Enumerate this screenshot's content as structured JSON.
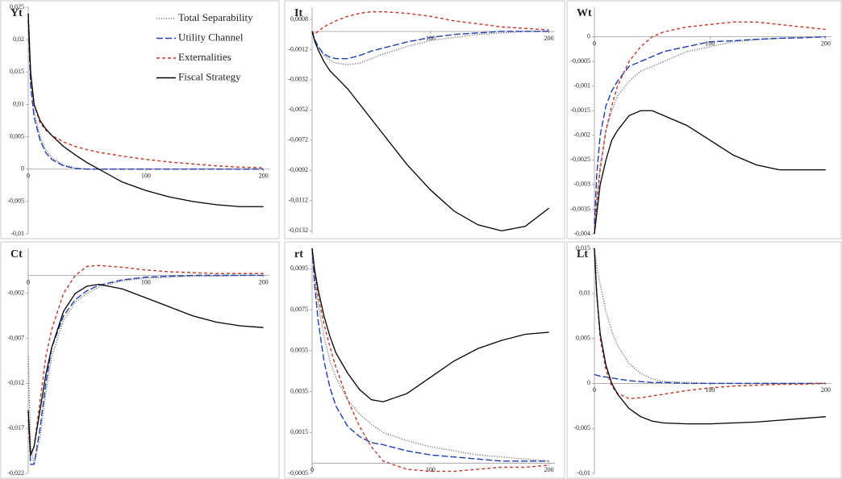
{
  "chart_data": [
    {
      "type": "line",
      "title": "Yt",
      "legend": "upper right",
      "x": [
        0,
        2,
        5,
        10,
        15,
        20,
        30,
        40,
        50,
        60,
        80,
        100,
        120,
        140,
        160,
        180,
        200
      ],
      "xlim": [
        0,
        205
      ],
      "xticks": [
        0,
        100,
        200
      ],
      "ylim": [
        -0.01,
        0.025
      ],
      "yticks": [
        {
          "value": 0.025,
          "label": "0,025"
        },
        {
          "value": 0.02,
          "label": "0,02"
        },
        {
          "value": 0.015,
          "label": "0,015"
        },
        {
          "value": 0.01,
          "label": "0,01"
        },
        {
          "value": 0.005,
          "label": "0,005"
        },
        0,
        {
          "value": -0.005,
          "label": "-0,005"
        },
        {
          "value": -0.01,
          "label": "-0,01"
        }
      ],
      "series": [
        {
          "name": "Total Separability",
          "color": "#777777",
          "style": "dotted",
          "values": [
            0.024,
            0.014,
            0.009,
            0.005,
            0.003,
            0.0018,
            0.0006,
            0.0002,
            0,
            0,
            0,
            0,
            0,
            0,
            0,
            0,
            0
          ]
        },
        {
          "name": "Utility Channel",
          "color": "#1f3fb0",
          "style": "dashed",
          "values": [
            0.023,
            0.013,
            0.008,
            0.0045,
            0.0025,
            0.0015,
            0.0005,
            0.0001,
            0,
            0,
            0,
            0,
            0,
            0,
            0,
            0,
            0
          ]
        },
        {
          "name": "Externalities",
          "color": "#c0392b",
          "style": "short-dashed",
          "values": [
            0.024,
            0.015,
            0.01,
            0.0072,
            0.006,
            0.0052,
            0.0042,
            0.0035,
            0.003,
            0.0026,
            0.002,
            0.0015,
            0.0011,
            0.0008,
            0.0005,
            0.0003,
            0.0002
          ]
        },
        {
          "name": "Fiscal Strategy",
          "color": "#000000",
          "style": "solid",
          "values": [
            0.024,
            0.015,
            0.01,
            0.0075,
            0.0062,
            0.0052,
            0.0035,
            0.0022,
            0.001,
            0,
            -0.002,
            -0.0033,
            -0.0043,
            -0.005,
            -0.0055,
            -0.0058,
            -0.0058
          ]
        }
      ]
    },
    {
      "type": "line",
      "title": "It",
      "x": [
        0,
        2,
        5,
        10,
        15,
        20,
        30,
        40,
        50,
        60,
        80,
        100,
        120,
        140,
        160,
        180,
        200
      ],
      "xlim": [
        0,
        205
      ],
      "xticks": [
        100,
        200
      ],
      "ylim": [
        -0.0134,
        0.0016
      ],
      "yticks": [
        {
          "value": 0.0008,
          "label": "0,0008"
        },
        {
          "value": -0.0012,
          "label": "-0,0012"
        },
        {
          "value": -0.0032,
          "label": "-0,0032"
        },
        {
          "value": -0.0052,
          "label": "-0,0052"
        },
        {
          "value": -0.0072,
          "label": "-0,0072"
        },
        {
          "value": -0.0092,
          "label": "-0,0092"
        },
        {
          "value": -0.0112,
          "label": "-0,0112"
        },
        {
          "value": -0.0132,
          "label": "-0,0132"
        }
      ],
      "series": [
        {
          "color": "#777777",
          "style": "dotted",
          "values": [
            0,
            -0.0005,
            -0.001,
            -0.0016,
            -0.0019,
            -0.0021,
            -0.0022,
            -0.0021,
            -0.0018,
            -0.0015,
            -0.001,
            -0.0006,
            -0.0004,
            -0.0002,
            -0.0001,
            0,
            0
          ]
        },
        {
          "color": "#1f3fb0",
          "style": "dashed",
          "values": [
            0,
            -0.0005,
            -0.001,
            -0.0015,
            -0.0017,
            -0.0018,
            -0.0018,
            -0.0016,
            -0.0013,
            -0.0011,
            -0.0007,
            -0.0004,
            -0.0002,
            -0.0001,
            0,
            0,
            0
          ]
        },
        {
          "color": "#c0392b",
          "style": "short-dashed",
          "values": [
            0,
            -0.0002,
            0,
            0.0003,
            0.0005,
            0.0007,
            0.001,
            0.0012,
            0.0013,
            0.0013,
            0.0012,
            0.001,
            0.0007,
            0.0005,
            0.0003,
            0.0002,
            0.0001
          ]
        },
        {
          "color": "#000000",
          "style": "solid",
          "values": [
            0,
            -0.0006,
            -0.0012,
            -0.002,
            -0.0026,
            -0.003,
            -0.0038,
            -0.0048,
            -0.0058,
            -0.0068,
            -0.0088,
            -0.0105,
            -0.0119,
            -0.0128,
            -0.0132,
            -0.0129,
            -0.0117
          ]
        }
      ]
    },
    {
      "type": "line",
      "title": "Wt",
      "x": [
        0,
        2,
        5,
        10,
        15,
        20,
        30,
        40,
        50,
        60,
        80,
        100,
        120,
        140,
        160,
        180,
        200
      ],
      "xlim": [
        0,
        205
      ],
      "xticks": [
        0,
        100,
        200
      ],
      "ylim": [
        -0.004,
        0.0006
      ],
      "yticks": [
        0,
        {
          "value": -0.0005,
          "label": "-0,0005"
        },
        {
          "value": -0.001,
          "label": "-0,001"
        },
        {
          "value": -0.0015,
          "label": "-0,0015"
        },
        {
          "value": -0.002,
          "label": "-0,002"
        },
        {
          "value": -0.0025,
          "label": "-0,0025"
        },
        {
          "value": -0.003,
          "label": "-0,003"
        },
        {
          "value": -0.0035,
          "label": "-0,0035"
        },
        {
          "value": -0.004,
          "label": "-0,004"
        }
      ],
      "series": [
        {
          "color": "#777777",
          "style": "dotted",
          "values": [
            -0.0039,
            -0.0033,
            -0.0026,
            -0.0019,
            -0.0015,
            -0.0012,
            -0.0009,
            -0.0007,
            -0.0006,
            -0.0005,
            -0.0003,
            -0.0002,
            -0.0001,
            -6e-05,
            -3e-05,
            -1e-05,
            0
          ]
        },
        {
          "color": "#1f3fb0",
          "style": "dashed",
          "values": [
            -0.0038,
            -0.0028,
            -0.002,
            -0.0014,
            -0.0011,
            -0.0009,
            -0.0006,
            -0.0005,
            -0.0004,
            -0.0003,
            -0.0002,
            -0.0001,
            -8e-05,
            -5e-05,
            -3e-05,
            -2e-05,
            0
          ]
        },
        {
          "color": "#c0392b",
          "style": "short-dashed",
          "values": [
            -0.004,
            -0.0034,
            -0.0027,
            -0.0019,
            -0.0014,
            -0.001,
            -0.0005,
            -0.0002,
            0,
            0.0001,
            0.0002,
            0.00025,
            0.0003,
            0.0003,
            0.00025,
            0.0002,
            0.00015
          ]
        },
        {
          "color": "#000000",
          "style": "solid",
          "values": [
            -0.004,
            -0.0036,
            -0.003,
            -0.0025,
            -0.0021,
            -0.0019,
            -0.0016,
            -0.0015,
            -0.0015,
            -0.0016,
            -0.0018,
            -0.0021,
            -0.0024,
            -0.0026,
            -0.0027,
            -0.0027,
            -0.0027
          ]
        }
      ]
    },
    {
      "type": "line",
      "title": "Ct",
      "x": [
        0,
        2,
        5,
        10,
        15,
        20,
        30,
        40,
        50,
        60,
        80,
        100,
        120,
        140,
        160,
        180,
        200
      ],
      "xlim": [
        0,
        205
      ],
      "xticks": [
        0,
        100,
        200
      ],
      "ylim": [
        -0.022,
        0.003
      ],
      "yticks": [
        {
          "value": -0.002,
          "label": "-0,002"
        },
        {
          "value": -0.007,
          "label": "-0,007"
        },
        {
          "value": -0.012,
          "label": "-0,012"
        },
        {
          "value": -0.017,
          "label": "-0,017"
        },
        {
          "value": -0.022,
          "label": "-0,022"
        }
      ],
      "series": [
        {
          "color": "#777777",
          "style": "dotted",
          "values": [
            -0.009,
            -0.019,
            -0.021,
            -0.018,
            -0.013,
            -0.009,
            -0.005,
            -0.003,
            -0.002,
            -0.0013,
            -0.0006,
            -0.0003,
            -0.0002,
            -0.0001,
            -0.0001,
            0,
            0
          ]
        },
        {
          "color": "#1f3fb0",
          "style": "dashed",
          "values": [
            -0.015,
            -0.021,
            -0.021,
            -0.017,
            -0.012,
            -0.008,
            -0.0045,
            -0.0027,
            -0.0017,
            -0.0011,
            -0.0005,
            -0.0002,
            -0.0001,
            0,
            0,
            0,
            0
          ]
        },
        {
          "color": "#c0392b",
          "style": "short-dashed",
          "values": [
            -0.016,
            -0.02,
            -0.019,
            -0.014,
            -0.009,
            -0.006,
            -0.002,
            0,
            0.001,
            0.0011,
            0.0009,
            0.0006,
            0.0004,
            0.0003,
            0.0002,
            0.0002,
            0.0002
          ]
        },
        {
          "color": "#000000",
          "style": "solid",
          "values": [
            -0.015,
            -0.02,
            -0.019,
            -0.015,
            -0.011,
            -0.008,
            -0.004,
            -0.002,
            -0.0012,
            -0.001,
            -0.0015,
            -0.0025,
            -0.0035,
            -0.0045,
            -0.0052,
            -0.0056,
            -0.0058
          ]
        }
      ]
    },
    {
      "type": "line",
      "title": "rt",
      "x": [
        0,
        2,
        5,
        10,
        15,
        20,
        30,
        40,
        50,
        60,
        80,
        100,
        120,
        140,
        160,
        180,
        200
      ],
      "xlim": [
        0,
        205
      ],
      "xticks": [
        0,
        100,
        200
      ],
      "ylim": [
        -0.0005,
        0.0105
      ],
      "yticks": [
        {
          "value": 0.0095,
          "label": "0,0095"
        },
        {
          "value": 0.0075,
          "label": "0,0075"
        },
        {
          "value": 0.0055,
          "label": "0,0055"
        },
        {
          "value": 0.0035,
          "label": "0,0035"
        },
        {
          "value": 0.0015,
          "label": "0,0015"
        },
        {
          "value": -0.0005,
          "label": "-0,0005"
        }
      ],
      "series": [
        {
          "color": "#777777",
          "style": "dotted",
          "values": [
            0.0105,
            0.0092,
            0.0078,
            0.0062,
            0.005,
            0.0042,
            0.0031,
            0.0024,
            0.0019,
            0.0015,
            0.0011,
            0.0008,
            0.0006,
            0.0004,
            0.0003,
            0.0002,
            0.0001
          ]
        },
        {
          "color": "#1f3fb0",
          "style": "dashed",
          "values": [
            0.0105,
            0.0088,
            0.007,
            0.005,
            0.0037,
            0.0028,
            0.0018,
            0.0013,
            0.001,
            0.0009,
            0.0006,
            0.0004,
            0.0003,
            0.0002,
            0.0001,
            0.0001,
            0.0001
          ]
        },
        {
          "color": "#c0392b",
          "style": "short-dashed",
          "values": [
            0.0105,
            0.0094,
            0.0082,
            0.0068,
            0.0057,
            0.0047,
            0.0031,
            0.0018,
            0.0008,
            0.0001,
            -0.0003,
            -0.0004,
            -0.0004,
            -0.0003,
            -0.0002,
            -0.0002,
            -0.0001
          ]
        },
        {
          "color": "#000000",
          "style": "solid",
          "values": [
            0.0105,
            0.0095,
            0.0085,
            0.0072,
            0.0062,
            0.0054,
            0.0044,
            0.0036,
            0.0031,
            0.003,
            0.0034,
            0.0042,
            0.005,
            0.0056,
            0.006,
            0.0063,
            0.0064
          ]
        }
      ]
    },
    {
      "type": "line",
      "title": "Lt",
      "x": [
        0,
        2,
        5,
        10,
        15,
        20,
        30,
        40,
        50,
        60,
        80,
        100,
        120,
        140,
        160,
        180,
        200
      ],
      "xlim": [
        0,
        205
      ],
      "xticks": [
        0,
        100,
        200
      ],
      "ylim": [
        -0.01,
        0.015
      ],
      "yticks": [
        {
          "value": 0.015,
          "label": "0,015"
        },
        {
          "value": 0.01,
          "label": "0,01"
        },
        {
          "value": 0.005,
          "label": "0,005"
        },
        0,
        {
          "value": -0.005,
          "label": "-0,005"
        },
        {
          "value": -0.01,
          "label": "-0,01"
        }
      ],
      "series": [
        {
          "color": "#777777",
          "style": "dotted",
          "values": [
            0.015,
            0.013,
            0.011,
            0.008,
            0.0058,
            0.0042,
            0.0022,
            0.0011,
            0.0005,
            0.0002,
            0.0001,
            0,
            0,
            0,
            0,
            0,
            0
          ]
        },
        {
          "color": "#1f3fb0",
          "style": "dashed",
          "values": [
            0.001,
            0.0009,
            0.0008,
            0.0007,
            0.0006,
            0.0005,
            0.0003,
            0.0002,
            0.0001,
            0.0001,
            0,
            0,
            0,
            0,
            0,
            0,
            0
          ]
        },
        {
          "color": "#c0392b",
          "style": "short-dashed",
          "values": [
            0.015,
            0.01,
            0.005,
            0.0015,
            -0.0003,
            -0.0011,
            -0.0017,
            -0.0016,
            -0.0014,
            -0.0012,
            -0.0008,
            -0.0005,
            -0.0003,
            -0.0002,
            -0.0001,
            -0.0001,
            0
          ]
        },
        {
          "color": "#000000",
          "style": "solid",
          "values": [
            0.015,
            0.01,
            0.0055,
            0.002,
            0,
            -0.0012,
            -0.0028,
            -0.0037,
            -0.0042,
            -0.0044,
            -0.0045,
            -0.0045,
            -0.0044,
            -0.0043,
            -0.0041,
            -0.0039,
            -0.0037
          ]
        }
      ]
    }
  ]
}
